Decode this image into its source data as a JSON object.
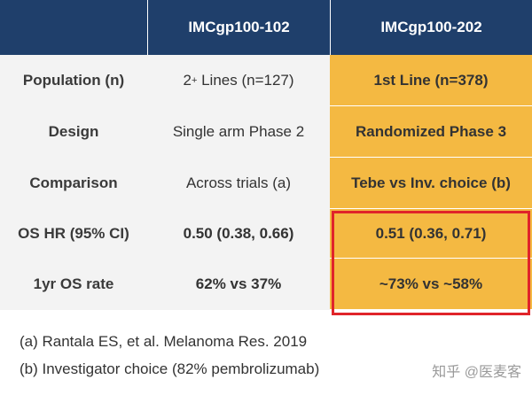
{
  "header": {
    "col1": "",
    "col2": "IMCgp100-102",
    "col3": "IMCgp100-202"
  },
  "rows": [
    {
      "label": "Population (n)",
      "trial102_prefix": "2",
      "trial102_sup": "+",
      "trial102_rest": " Lines (n=127)",
      "trial202": "1st Line (n=378)"
    },
    {
      "label": "Design",
      "trial102": "Single arm Phase 2",
      "trial202": "Randomized Phase 3"
    },
    {
      "label": "Comparison",
      "trial102": "Across trials (a)",
      "trial202": "Tebe vs Inv. choice (b)"
    },
    {
      "label": "OS HR (95% CI)",
      "trial102": "0.50 (0.38, 0.66)",
      "trial202": "0.51 (0.36, 0.71)"
    },
    {
      "label": "1yr OS rate",
      "trial102": "62% vs 37%",
      "trial202": "~73% vs ~58%"
    }
  ],
  "footnotes": {
    "a": "(a) Rantala ES, et al. Melanoma Res. 2019",
    "b": "(b) Investigator choice (82% pembrolizumab)"
  },
  "watermark": "知乎 @医麦客",
  "colors": {
    "header": "#1f3f6b",
    "highlight": "#f4b942",
    "border": "#e0242a"
  }
}
